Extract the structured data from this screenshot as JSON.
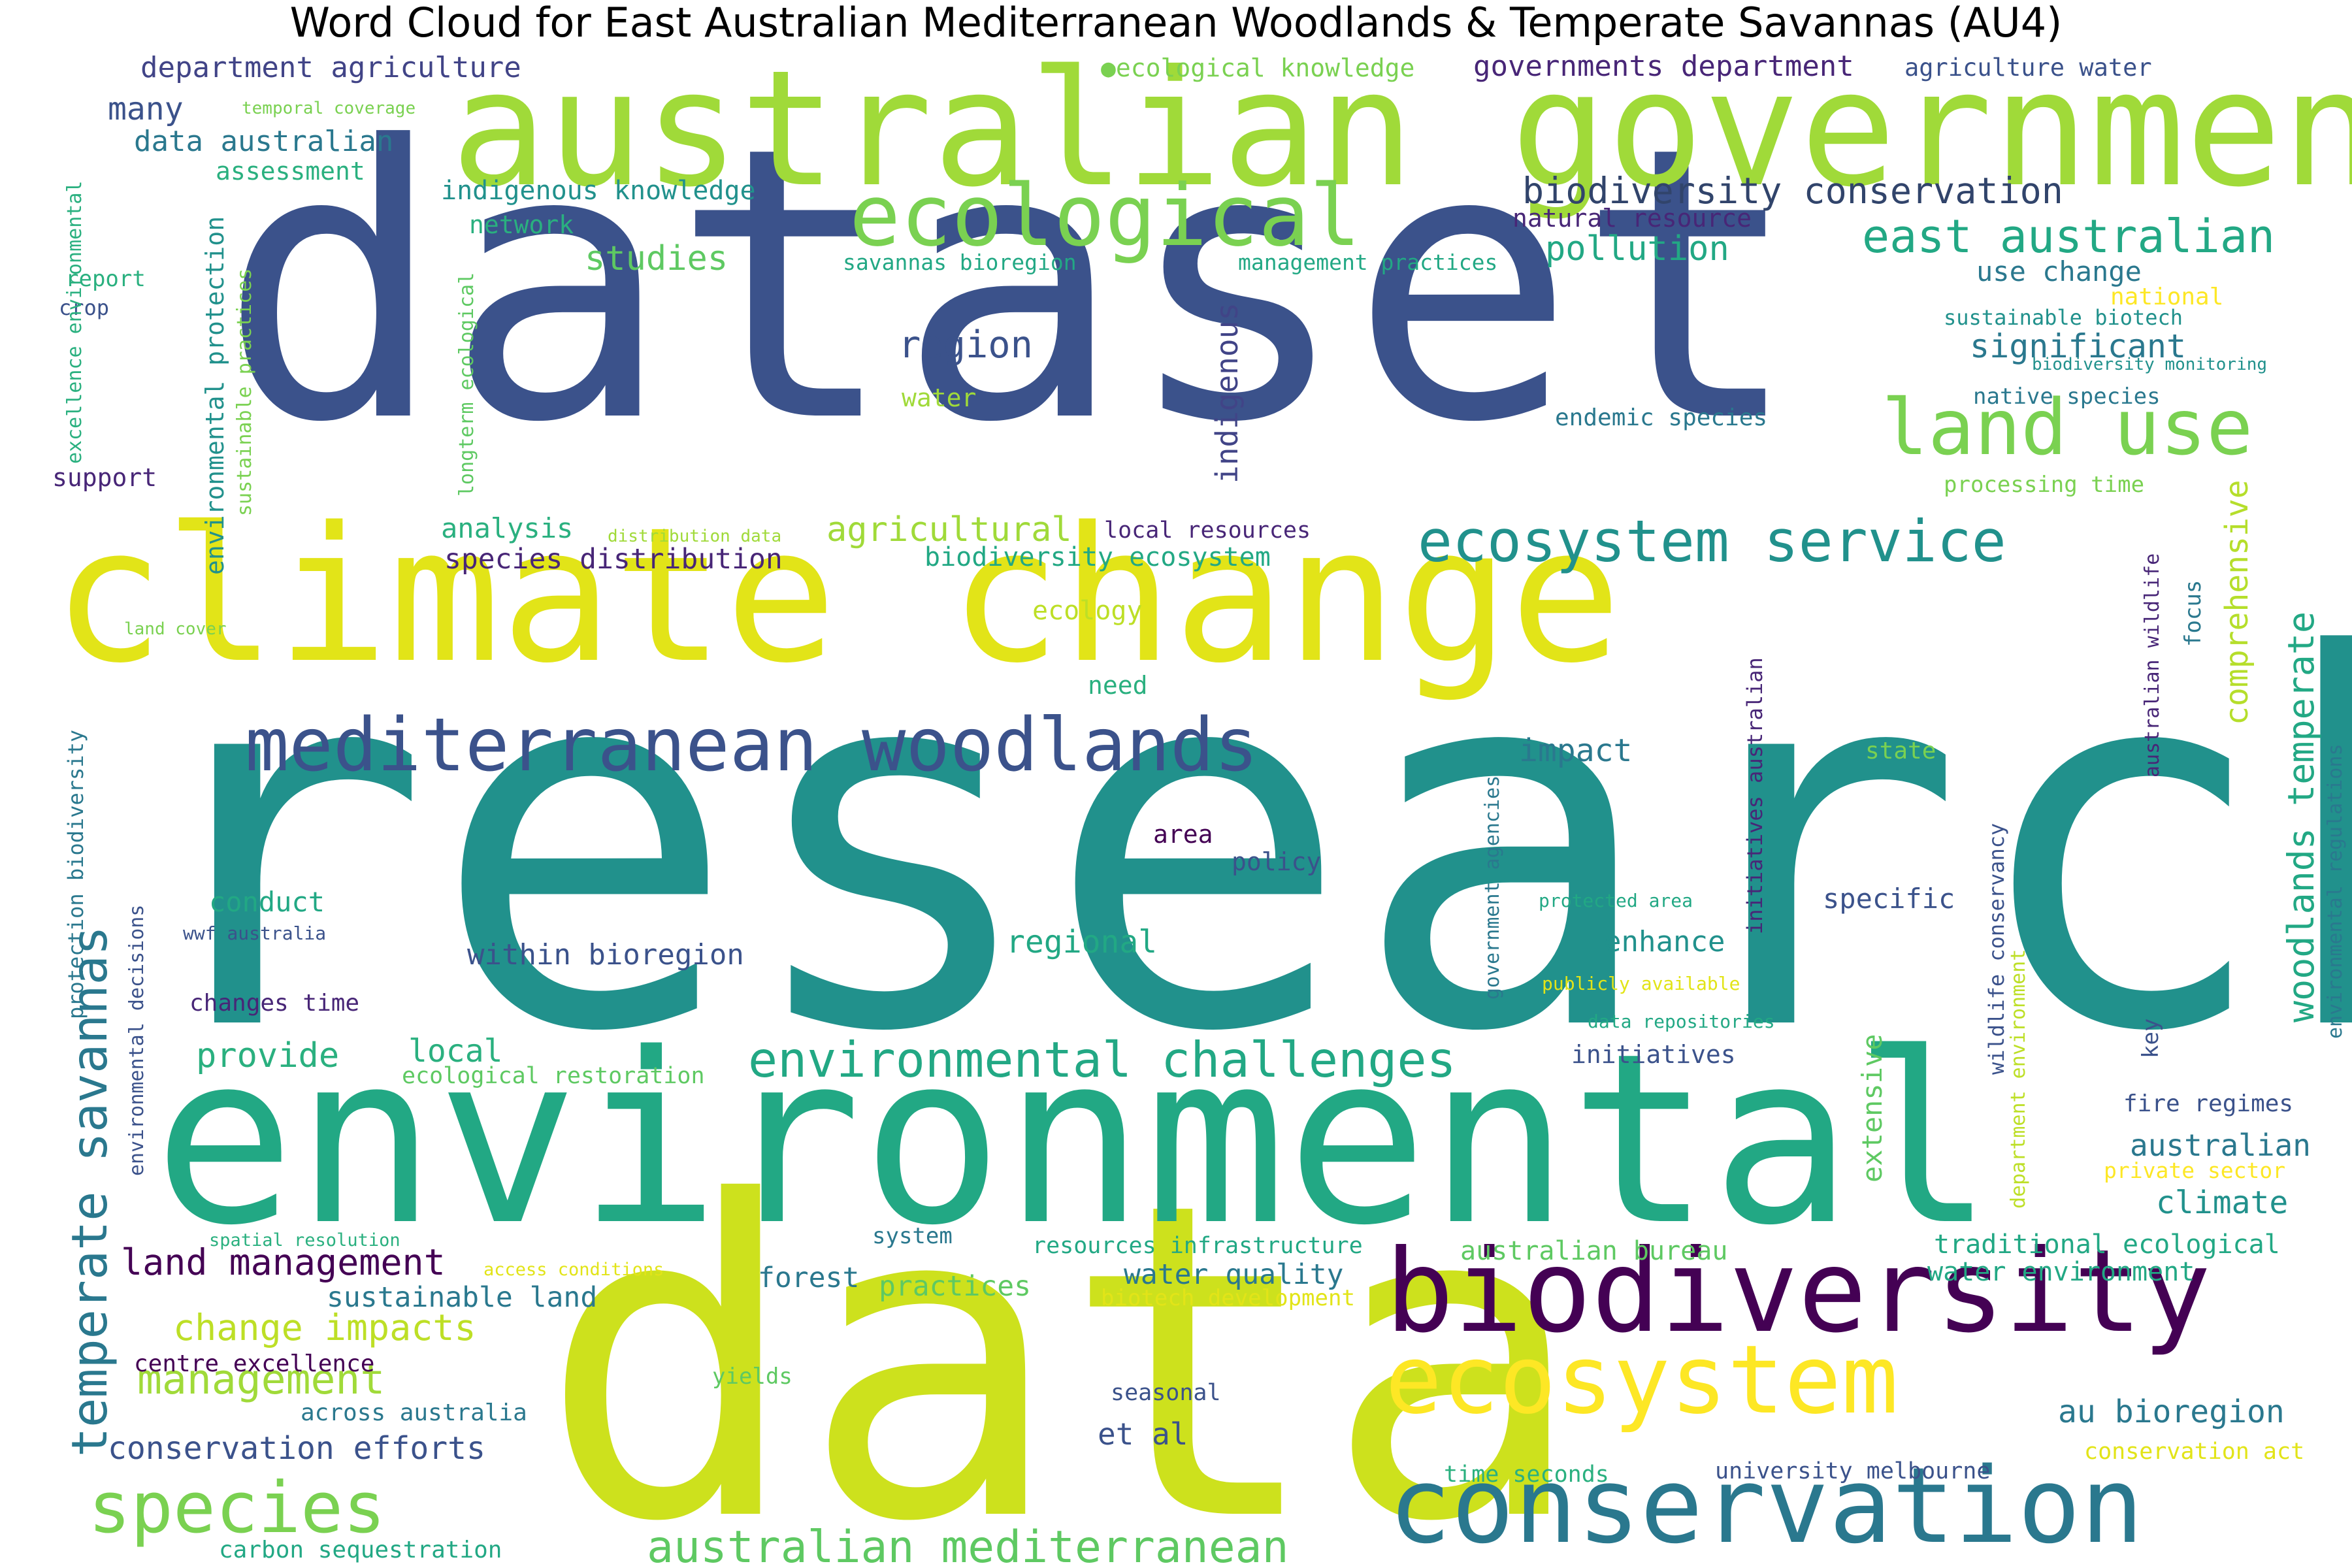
{
  "title": "Word Cloud for East Australian Mediterranean Woodlands & Temperate Savannas (AU4)",
  "words": [
    {
      "id": "research",
      "text": "research",
      "color": "#21918c"
    },
    {
      "id": "dataset",
      "text": "dataset",
      "color": "#3b528b"
    },
    {
      "id": "data",
      "text": "data",
      "color": "#cde11d"
    },
    {
      "id": "environmental",
      "text": "environmental",
      "color": "#22a884"
    },
    {
      "id": "climate-change",
      "text": "climate change",
      "color": "#e2e418"
    },
    {
      "id": "australian-government",
      "text": "australian government",
      "color": "#a0da39"
    },
    {
      "id": "biodiversity",
      "text": "biodiversity",
      "color": "#440154"
    },
    {
      "id": "conservation",
      "text": "conservation",
      "color": "#2a788e"
    },
    {
      "id": "ecosystem",
      "text": "ecosystem",
      "color": "#fde725"
    },
    {
      "id": "ecological",
      "text": "ecological",
      "color": "#7ad151"
    },
    {
      "id": "mediterranean-woodlands",
      "text": "mediterranean woodlands",
      "color": "#3b528b"
    },
    {
      "id": "ecosystem-service",
      "text": "ecosystem service",
      "color": "#21918c"
    },
    {
      "id": "species",
      "text": "species",
      "color": "#7ad151"
    },
    {
      "id": "land-use",
      "text": "land use",
      "color": "#7ad151"
    },
    {
      "id": "temperate-savannas",
      "text": "temperate savannas",
      "color": "#2a788e"
    },
    {
      "id": "environmental-challenges",
      "text": "environmental challenges",
      "color": "#22a884"
    },
    {
      "id": "australian-mediterranean",
      "text": "australian mediterranean",
      "color": "#5ec962"
    },
    {
      "id": "east-australian",
      "text": "east australian",
      "color": "#22a884"
    },
    {
      "id": "biodiversity-conservation",
      "text": "biodiversity conservation",
      "color": "#31446b"
    },
    {
      "id": "woodlands-temperate",
      "text": "woodlands temperate",
      "color": "#22a884"
    },
    {
      "id": "management",
      "text": "management",
      "color": "#a0da39"
    },
    {
      "id": "land-management",
      "text": "land management",
      "color": "#440154"
    },
    {
      "id": "change-impacts",
      "text": "change impacts",
      "color": "#bddf26"
    },
    {
      "id": "conservation-efforts",
      "text": "conservation efforts",
      "color": "#3b528b"
    },
    {
      "id": "comprehensive",
      "text": "comprehensive",
      "color": "#b5de2b"
    },
    {
      "id": "indigenous",
      "text": "indigenous",
      "color": "#414487"
    },
    {
      "id": "region",
      "text": "region",
      "color": "#3b528b"
    },
    {
      "id": "pollution",
      "text": "pollution",
      "color": "#22a884"
    },
    {
      "id": "significant",
      "text": "significant",
      "color": "#2a788e"
    },
    {
      "id": "studies",
      "text": "studies",
      "color": "#5ec962"
    },
    {
      "id": "agricultural",
      "text": "agricultural",
      "color": "#a0da39"
    },
    {
      "id": "provide",
      "text": "provide",
      "color": "#2ab07f"
    },
    {
      "id": "local",
      "text": "local",
      "color": "#2ab07f"
    },
    {
      "id": "regional",
      "text": "regional",
      "color": "#22a884"
    },
    {
      "id": "impact",
      "text": "impact",
      "color": "#2a788e"
    },
    {
      "id": "enhance",
      "text": "enhance",
      "color": "#21918c"
    },
    {
      "id": "au-bioregion",
      "text": "au bioregion",
      "color": "#2a788e"
    },
    {
      "id": "climate",
      "text": "climate",
      "color": "#21918c"
    },
    {
      "id": "australian",
      "text": "australian",
      "color": "#2a788e"
    },
    {
      "id": "many",
      "text": "many",
      "color": "#3b528b"
    },
    {
      "id": "department-agriculture",
      "text": "department agriculture",
      "color": "#414487"
    },
    {
      "id": "governments-department",
      "text": "governments department",
      "color": "#482677"
    },
    {
      "id": "data-australian",
      "text": "data australian",
      "color": "#2a788e"
    },
    {
      "id": "within-bioregion",
      "text": "within bioregion",
      "color": "#3b528b"
    },
    {
      "id": "species-distribution",
      "text": "species distribution",
      "color": "#482677"
    },
    {
      "id": "et-al",
      "text": "et al",
      "color": "#3b528b"
    },
    {
      "id": "water-quality",
      "text": "water quality",
      "color": "#2a788e"
    },
    {
      "id": "forest",
      "text": "forest",
      "color": "#2a788e"
    },
    {
      "id": "practices",
      "text": "practices",
      "color": "#5ec962"
    },
    {
      "id": "sustainable-land",
      "text": "sustainable land",
      "color": "#2a788e"
    },
    {
      "id": "analysis",
      "text": "analysis",
      "color": "#2ab07f"
    },
    {
      "id": "conduct",
      "text": "conduct",
      "color": "#22a884"
    },
    {
      "id": "use-change",
      "text": "use change",
      "color": "#2a788e"
    },
    {
      "id": "extensive",
      "text": "extensive",
      "color": "#5ec962"
    },
    {
      "id": "indigenous-knowledge",
      "text": "indigenous knowledge",
      "color": "#21918c"
    },
    {
      "id": "biodiversity-ecosystem",
      "text": "biodiversity ecosystem",
      "color": "#22a884"
    },
    {
      "id": "australian-bureau",
      "text": "australian bureau",
      "color": "#5ec962"
    },
    {
      "id": "traditional-ecological",
      "text": "traditional ecological",
      "color": "#22a884"
    },
    {
      "id": "water-environment",
      "text": "water environment",
      "color": "#22a884"
    },
    {
      "id": "specific",
      "text": "specific",
      "color": "#3b528b"
    },
    {
      "id": "natural-resource",
      "text": "natural resource",
      "color": "#482677"
    },
    {
      "id": "support",
      "text": "support",
      "color": "#482677"
    },
    {
      "id": "environmental-protection",
      "text": "environmental protection",
      "color": "#21918c"
    },
    {
      "id": "agriculture-water",
      "text": "agriculture water",
      "color": "#3b528b"
    },
    {
      "id": "ecological-knowledge",
      "text": "●ecological knowledge",
      "color": "#7ad151"
    },
    {
      "id": "across-australia",
      "text": "across australia",
      "color": "#2a788e"
    },
    {
      "id": "carbon-sequestration",
      "text": "carbon sequestration",
      "color": "#22a884"
    },
    {
      "id": "centre-excellence",
      "text": "centre excellence",
      "color": "#440154"
    },
    {
      "id": "changes-time",
      "text": "changes time",
      "color": "#482677"
    },
    {
      "id": "assessment",
      "text": "assessment",
      "color": "#2ab07f"
    },
    {
      "id": "network",
      "text": "network",
      "color": "#2ab07f"
    },
    {
      "id": "water",
      "text": "water",
      "color": "#a0da39"
    },
    {
      "id": "ecology",
      "text": "ecology",
      "color": "#bddf26"
    },
    {
      "id": "need",
      "text": "need",
      "color": "#2ab07f"
    },
    {
      "id": "area",
      "text": "area",
      "color": "#440154"
    },
    {
      "id": "policy",
      "text": "policy",
      "color": "#3b528b"
    },
    {
      "id": "initiatives",
      "text": "initiatives",
      "color": "#3b528b"
    },
    {
      "id": "system",
      "text": "system",
      "color": "#2a788e"
    },
    {
      "id": "resources-infrastructure",
      "text": "resources infrastructure",
      "color": "#22a884"
    },
    {
      "id": "seasonal",
      "text": "seasonal",
      "color": "#3b528b"
    },
    {
      "id": "time-seconds",
      "text": "time seconds",
      "color": "#2ab07f"
    },
    {
      "id": "university-melbourne",
      "text": "university melbourne",
      "color": "#3b528b"
    },
    {
      "id": "conservation-act",
      "text": "conservation act",
      "color": "#e2e418"
    },
    {
      "id": "private-sector",
      "text": "private sector",
      "color": "#fde725"
    },
    {
      "id": "fire-regimes",
      "text": "fire regimes",
      "color": "#3b528b"
    },
    {
      "id": "key",
      "text": "key",
      "color": "#3b528b"
    },
    {
      "id": "state",
      "text": "state",
      "color": "#7ad151"
    },
    {
      "id": "focus",
      "text": "focus",
      "color": "#2a788e"
    },
    {
      "id": "native-species",
      "text": "native species",
      "color": "#2a788e"
    },
    {
      "id": "endemic-species",
      "text": "endemic species",
      "color": "#2a788e"
    },
    {
      "id": "local-resources",
      "text": "local resources",
      "color": "#482677"
    },
    {
      "id": "savannas-bioregion",
      "text": "savannas bioregion",
      "color": "#22a884"
    },
    {
      "id": "management-practices",
      "text": "management practices",
      "color": "#22a884"
    },
    {
      "id": "sustainable-biotech",
      "text": "sustainable biotech",
      "color": "#21918c"
    },
    {
      "id": "processing-time",
      "text": "processing time",
      "color": "#7ad151"
    },
    {
      "id": "national",
      "text": "national",
      "color": "#fde725"
    },
    {
      "id": "biodiversity-monitoring",
      "text": "biodiversity monitoring",
      "color": "#21918c"
    },
    {
      "id": "report",
      "text": "report",
      "color": "#2ab07f"
    },
    {
      "id": "crop",
      "text": "crop",
      "color": "#3b528b"
    },
    {
      "id": "temporal-coverage",
      "text": "temporal coverage",
      "color": "#7ad151"
    },
    {
      "id": "excellence-environmental",
      "text": "excellence environmental",
      "color": "#2ab07f"
    },
    {
      "id": "sustainable-practices",
      "text": "sustainable practices",
      "color": "#7ad151"
    },
    {
      "id": "longterm-ecological",
      "text": "longterm ecological",
      "color": "#5ec962"
    },
    {
      "id": "land-cover",
      "text": "land cover",
      "color": "#7ad151"
    },
    {
      "id": "distribution-data",
      "text": "distribution data",
      "color": "#a0da39"
    },
    {
      "id": "protection-biodiversity",
      "text": "protection biodiversity",
      "color": "#2a788e"
    },
    {
      "id": "environmental-decisions",
      "text": "environmental decisions",
      "color": "#3b528b"
    },
    {
      "id": "wwf-australia",
      "text": "wwf australia",
      "color": "#3b528b"
    },
    {
      "id": "spatial-resolution",
      "text": "spatial resolution",
      "color": "#2ab07f"
    },
    {
      "id": "access-conditions",
      "text": "access conditions",
      "color": "#e2e418"
    },
    {
      "id": "yields",
      "text": "yields",
      "color": "#5ec962"
    },
    {
      "id": "ecological-restoration",
      "text": "ecological restoration",
      "color": "#5ec962"
    },
    {
      "id": "biotech-development",
      "text": "biotech development",
      "color": "#e2e418"
    },
    {
      "id": "government-agencies",
      "text": "government agencies",
      "color": "#2a788e"
    },
    {
      "id": "protected-area",
      "text": "protected area",
      "color": "#22a884"
    },
    {
      "id": "publicly-available",
      "text": "publicly available",
      "color": "#e2e418"
    },
    {
      "id": "data-repositories",
      "text": "data repositories",
      "color": "#22a884"
    },
    {
      "id": "initiatives-australian",
      "text": "initiatives australian",
      "color": "#482677"
    },
    {
      "id": "wildlife-conservancy",
      "text": "wildlife conservancy",
      "color": "#3b528b"
    },
    {
      "id": "department-environment",
      "text": "department environment",
      "color": "#bddf26"
    },
    {
      "id": "australian-wildlife",
      "text": "australian wildlife",
      "color": "#482677"
    },
    {
      "id": "environmental-regulations",
      "text": "environmental regulations",
      "color": "#2a788e"
    }
  ]
}
